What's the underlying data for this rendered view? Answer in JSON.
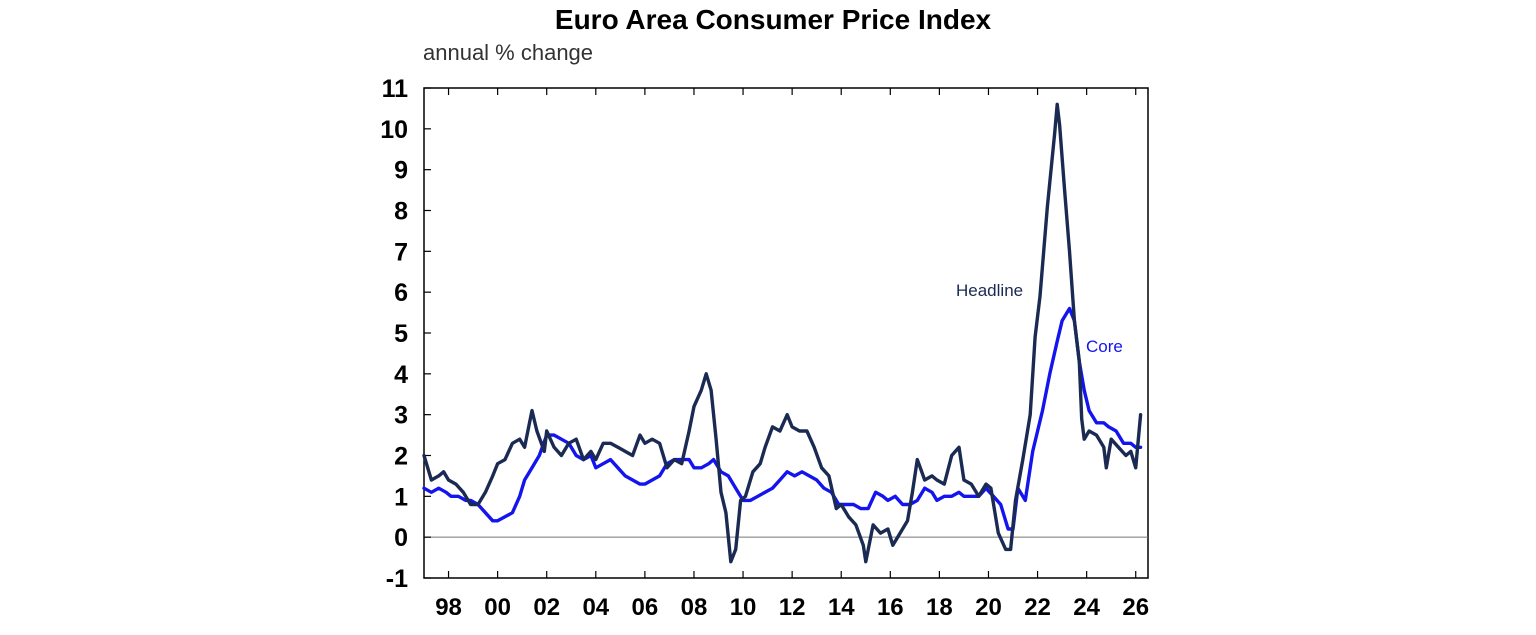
{
  "chart_data": {
    "type": "line",
    "title": "Euro Area Consumer Price Index",
    "subtitle": "annual % change",
    "xlabel": "",
    "ylabel": "",
    "xlim": [
      1997.0,
      2026.5
    ],
    "ylim": [
      -1,
      11
    ],
    "y_ticks": [
      -1,
      0,
      1,
      2,
      3,
      4,
      5,
      6,
      7,
      8,
      9,
      10,
      11
    ],
    "y_tick_labels": [
      "-1",
      "0",
      "1",
      "2",
      "3",
      "4",
      "5",
      "6",
      "7",
      "8",
      "9",
      "10",
      "11"
    ],
    "x_ticks": [
      1998,
      2000,
      2002,
      2004,
      2006,
      2008,
      2010,
      2012,
      2014,
      2016,
      2018,
      2020,
      2022,
      2024,
      2026
    ],
    "x_tick_labels": [
      "98",
      "00",
      "02",
      "04",
      "06",
      "08",
      "10",
      "12",
      "14",
      "16",
      "18",
      "20",
      "22",
      "24",
      "26"
    ],
    "grid": false,
    "zero_line": true,
    "series": [
      {
        "name": "Headline",
        "color": "#1a2a52",
        "points": [
          [
            1997.0,
            2.0
          ],
          [
            1997.3,
            1.4
          ],
          [
            1997.6,
            1.5
          ],
          [
            1997.8,
            1.6
          ],
          [
            1998.0,
            1.4
          ],
          [
            1998.3,
            1.3
          ],
          [
            1998.6,
            1.1
          ],
          [
            1998.9,
            0.8
          ],
          [
            1999.2,
            0.8
          ],
          [
            1999.5,
            1.1
          ],
          [
            1999.8,
            1.5
          ],
          [
            2000.0,
            1.8
          ],
          [
            2000.3,
            1.9
          ],
          [
            2000.6,
            2.3
          ],
          [
            2000.9,
            2.4
          ],
          [
            2001.1,
            2.2
          ],
          [
            2001.3,
            2.8
          ],
          [
            2001.4,
            3.1
          ],
          [
            2001.6,
            2.6
          ],
          [
            2001.9,
            2.1
          ],
          [
            2002.0,
            2.6
          ],
          [
            2002.3,
            2.2
          ],
          [
            2002.6,
            2.0
          ],
          [
            2002.9,
            2.3
          ],
          [
            2003.2,
            2.4
          ],
          [
            2003.5,
            1.9
          ],
          [
            2003.8,
            2.1
          ],
          [
            2004.0,
            1.9
          ],
          [
            2004.3,
            2.3
          ],
          [
            2004.6,
            2.3
          ],
          [
            2004.9,
            2.2
          ],
          [
            2005.2,
            2.1
          ],
          [
            2005.5,
            2.0
          ],
          [
            2005.8,
            2.5
          ],
          [
            2006.0,
            2.3
          ],
          [
            2006.3,
            2.4
          ],
          [
            2006.6,
            2.3
          ],
          [
            2006.9,
            1.7
          ],
          [
            2007.2,
            1.9
          ],
          [
            2007.5,
            1.8
          ],
          [
            2007.8,
            2.6
          ],
          [
            2008.0,
            3.2
          ],
          [
            2008.3,
            3.6
          ],
          [
            2008.5,
            4.0
          ],
          [
            2008.7,
            3.6
          ],
          [
            2008.9,
            2.4
          ],
          [
            2009.1,
            1.1
          ],
          [
            2009.3,
            0.6
          ],
          [
            2009.5,
            -0.6
          ],
          [
            2009.7,
            -0.3
          ],
          [
            2009.9,
            0.9
          ],
          [
            2010.1,
            1.0
          ],
          [
            2010.4,
            1.6
          ],
          [
            2010.7,
            1.8
          ],
          [
            2010.9,
            2.2
          ],
          [
            2011.2,
            2.7
          ],
          [
            2011.5,
            2.6
          ],
          [
            2011.8,
            3.0
          ],
          [
            2012.0,
            2.7
          ],
          [
            2012.3,
            2.6
          ],
          [
            2012.6,
            2.6
          ],
          [
            2012.9,
            2.2
          ],
          [
            2013.2,
            1.7
          ],
          [
            2013.5,
            1.5
          ],
          [
            2013.8,
            0.7
          ],
          [
            2014.0,
            0.8
          ],
          [
            2014.3,
            0.5
          ],
          [
            2014.6,
            0.3
          ],
          [
            2014.9,
            -0.2
          ],
          [
            2015.0,
            -0.6
          ],
          [
            2015.3,
            0.3
          ],
          [
            2015.6,
            0.1
          ],
          [
            2015.9,
            0.2
          ],
          [
            2016.1,
            -0.2
          ],
          [
            2016.4,
            0.1
          ],
          [
            2016.7,
            0.4
          ],
          [
            2016.9,
            1.1
          ],
          [
            2017.1,
            1.9
          ],
          [
            2017.4,
            1.4
          ],
          [
            2017.7,
            1.5
          ],
          [
            2017.9,
            1.4
          ],
          [
            2018.2,
            1.3
          ],
          [
            2018.5,
            2.0
          ],
          [
            2018.8,
            2.2
          ],
          [
            2019.0,
            1.4
          ],
          [
            2019.3,
            1.3
          ],
          [
            2019.6,
            1.0
          ],
          [
            2019.9,
            1.3
          ],
          [
            2020.1,
            1.2
          ],
          [
            2020.4,
            0.1
          ],
          [
            2020.7,
            -0.3
          ],
          [
            2020.9,
            -0.3
          ],
          [
            2021.1,
            0.9
          ],
          [
            2021.4,
            1.9
          ],
          [
            2021.7,
            3.0
          ],
          [
            2021.9,
            4.9
          ],
          [
            2022.1,
            5.9
          ],
          [
            2022.4,
            8.1
          ],
          [
            2022.7,
            9.9
          ],
          [
            2022.8,
            10.6
          ],
          [
            2022.9,
            10.1
          ],
          [
            2023.1,
            8.5
          ],
          [
            2023.3,
            7.0
          ],
          [
            2023.5,
            5.3
          ],
          [
            2023.7,
            4.3
          ],
          [
            2023.8,
            2.9
          ],
          [
            2023.9,
            2.4
          ],
          [
            2024.1,
            2.6
          ],
          [
            2024.4,
            2.5
          ],
          [
            2024.7,
            2.2
          ],
          [
            2024.8,
            1.7
          ],
          [
            2025.0,
            2.4
          ],
          [
            2025.3,
            2.2
          ],
          [
            2025.6,
            2.0
          ],
          [
            2025.8,
            2.1
          ],
          [
            2026.0,
            1.7
          ],
          [
            2026.2,
            3.0
          ]
        ]
      },
      {
        "name": "Core",
        "color": "#1414ee",
        "points": [
          [
            1997.0,
            1.2
          ],
          [
            1997.3,
            1.1
          ],
          [
            1997.6,
            1.2
          ],
          [
            1997.9,
            1.1
          ],
          [
            1998.1,
            1.0
          ],
          [
            1998.4,
            1.0
          ],
          [
            1998.7,
            0.9
          ],
          [
            1998.9,
            0.9
          ],
          [
            1999.2,
            0.8
          ],
          [
            1999.5,
            0.6
          ],
          [
            1999.8,
            0.4
          ],
          [
            2000.0,
            0.4
          ],
          [
            2000.3,
            0.5
          ],
          [
            2000.6,
            0.6
          ],
          [
            2000.9,
            1.0
          ],
          [
            2001.1,
            1.4
          ],
          [
            2001.4,
            1.7
          ],
          [
            2001.7,
            2.0
          ],
          [
            2002.0,
            2.5
          ],
          [
            2002.3,
            2.5
          ],
          [
            2002.6,
            2.4
          ],
          [
            2002.9,
            2.3
          ],
          [
            2003.2,
            2.0
          ],
          [
            2003.5,
            1.9
          ],
          [
            2003.8,
            2.0
          ],
          [
            2004.0,
            1.7
          ],
          [
            2004.3,
            1.8
          ],
          [
            2004.6,
            1.9
          ],
          [
            2004.9,
            1.7
          ],
          [
            2005.2,
            1.5
          ],
          [
            2005.5,
            1.4
          ],
          [
            2005.8,
            1.3
          ],
          [
            2006.0,
            1.3
          ],
          [
            2006.3,
            1.4
          ],
          [
            2006.6,
            1.5
          ],
          [
            2006.9,
            1.8
          ],
          [
            2007.2,
            1.9
          ],
          [
            2007.5,
            1.9
          ],
          [
            2007.8,
            1.9
          ],
          [
            2008.0,
            1.7
          ],
          [
            2008.3,
            1.7
          ],
          [
            2008.6,
            1.8
          ],
          [
            2008.8,
            1.9
          ],
          [
            2009.1,
            1.6
          ],
          [
            2009.4,
            1.5
          ],
          [
            2009.7,
            1.2
          ],
          [
            2010.0,
            0.9
          ],
          [
            2010.3,
            0.9
          ],
          [
            2010.6,
            1.0
          ],
          [
            2010.9,
            1.1
          ],
          [
            2011.2,
            1.2
          ],
          [
            2011.5,
            1.4
          ],
          [
            2011.8,
            1.6
          ],
          [
            2012.1,
            1.5
          ],
          [
            2012.4,
            1.6
          ],
          [
            2012.7,
            1.5
          ],
          [
            2013.0,
            1.4
          ],
          [
            2013.3,
            1.2
          ],
          [
            2013.6,
            1.1
          ],
          [
            2013.9,
            0.8
          ],
          [
            2014.2,
            0.8
          ],
          [
            2014.5,
            0.8
          ],
          [
            2014.8,
            0.7
          ],
          [
            2015.1,
            0.7
          ],
          [
            2015.4,
            1.1
          ],
          [
            2015.7,
            1.0
          ],
          [
            2015.9,
            0.9
          ],
          [
            2016.2,
            1.0
          ],
          [
            2016.5,
            0.8
          ],
          [
            2016.8,
            0.8
          ],
          [
            2017.1,
            0.9
          ],
          [
            2017.4,
            1.2
          ],
          [
            2017.7,
            1.1
          ],
          [
            2017.9,
            0.9
          ],
          [
            2018.2,
            1.0
          ],
          [
            2018.5,
            1.0
          ],
          [
            2018.8,
            1.1
          ],
          [
            2019.0,
            1.0
          ],
          [
            2019.3,
            1.0
          ],
          [
            2019.6,
            1.0
          ],
          [
            2019.9,
            1.2
          ],
          [
            2020.2,
            1.0
          ],
          [
            2020.5,
            0.8
          ],
          [
            2020.8,
            0.2
          ],
          [
            2021.0,
            0.2
          ],
          [
            2021.2,
            1.2
          ],
          [
            2021.5,
            0.9
          ],
          [
            2021.8,
            2.1
          ],
          [
            2022.0,
            2.6
          ],
          [
            2022.2,
            3.1
          ],
          [
            2022.5,
            4.0
          ],
          [
            2022.8,
            4.8
          ],
          [
            2023.0,
            5.3
          ],
          [
            2023.2,
            5.5
          ],
          [
            2023.3,
            5.6
          ],
          [
            2023.5,
            5.3
          ],
          [
            2023.7,
            4.3
          ],
          [
            2023.9,
            3.6
          ],
          [
            2024.1,
            3.1
          ],
          [
            2024.4,
            2.8
          ],
          [
            2024.7,
            2.8
          ],
          [
            2024.9,
            2.7
          ],
          [
            2025.2,
            2.6
          ],
          [
            2025.5,
            2.3
          ],
          [
            2025.8,
            2.3
          ],
          [
            2026.0,
            2.2
          ],
          [
            2026.2,
            2.2
          ]
        ]
      }
    ],
    "annotations": [
      {
        "text": "Headline",
        "series": "Headline"
      },
      {
        "text": "Core",
        "series": "Core"
      }
    ]
  }
}
